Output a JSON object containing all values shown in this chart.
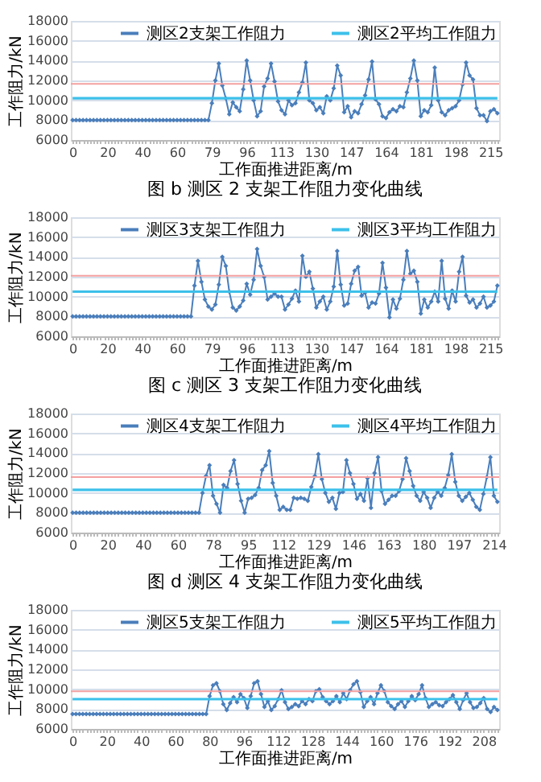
{
  "chart_data": [
    {
      "type": "line",
      "title": "图 b   测区 2 支架工作阻力变化曲线",
      "xlabel": "工作面推进距离/m",
      "ylabel": "工作阻力/kN",
      "categories": [
        "0",
        null,
        null,
        null,
        null,
        null,
        null,
        null,
        null,
        null,
        "20",
        null,
        null,
        null,
        null,
        null,
        null,
        null,
        null,
        null,
        "40",
        null,
        null,
        null,
        null,
        null,
        null,
        null,
        null,
        null,
        "60",
        null,
        null,
        null,
        null,
        null,
        null,
        null,
        null,
        null,
        "79",
        null,
        null,
        null,
        null,
        null,
        null,
        null,
        null,
        null,
        "96",
        null,
        null,
        null,
        null,
        null,
        null,
        null,
        null,
        null,
        "113",
        null,
        null,
        null,
        null,
        null,
        null,
        null,
        null,
        null,
        "130",
        null,
        null,
        null,
        null,
        null,
        null,
        null,
        null,
        null,
        "147",
        null,
        null,
        null,
        null,
        null,
        null,
        null,
        null,
        null,
        "164",
        null,
        null,
        null,
        null,
        null,
        null,
        null,
        null,
        null,
        "181",
        null,
        null,
        null,
        null,
        null,
        null,
        null,
        null,
        null,
        "198",
        null,
        null,
        null,
        null,
        null,
        null,
        null,
        null,
        null,
        "215",
        null,
        null
      ],
      "series": [
        {
          "name": "测区2支架工作阻力",
          "color": "#4a7ebb",
          "marker": "diamond",
          "values": [
            8000,
            8000,
            8000,
            8000,
            8000,
            8000,
            8000,
            8000,
            8000,
            8000,
            8000,
            8000,
            8000,
            8000,
            8000,
            8000,
            8000,
            8000,
            8000,
            8000,
            8000,
            8000,
            8000,
            8000,
            8000,
            8000,
            8000,
            8000,
            8000,
            8000,
            8000,
            8000,
            8000,
            8000,
            8000,
            8000,
            8000,
            8000,
            8000,
            8000,
            9700,
            12000,
            13700,
            11500,
            10200,
            8600,
            9800,
            9300,
            8900,
            11100,
            14000,
            12000,
            10000,
            8400,
            8900,
            11400,
            12200,
            13700,
            11900,
            9900,
            9000,
            8600,
            10000,
            9500,
            9700,
            10800,
            11800,
            13800,
            10000,
            9700,
            9000,
            9300,
            8700,
            10400,
            10000,
            11200,
            13500,
            12500,
            8800,
            9400,
            8300,
            8900,
            8700,
            9600,
            10500,
            12100,
            13900,
            10100,
            9600,
            8400,
            8200,
            8800,
            9100,
            8900,
            9400,
            9300,
            10800,
            12200,
            14000,
            12000,
            8400,
            9000,
            8800,
            9500,
            13300,
            10000,
            8800,
            8500,
            9000,
            9200,
            9400,
            10000,
            11600,
            13800,
            12500,
            12100,
            9200,
            8500,
            8500,
            7900,
            8900,
            9100,
            8700
          ]
        },
        {
          "name": "测区2平均工作阻力",
          "color": "#3cc0ea",
          "marker": "none",
          "values": [
            10200,
            10200,
            10200,
            10200,
            10200,
            10200,
            10200,
            10200,
            10200,
            10200,
            10200,
            10200,
            10200,
            10200,
            10200,
            10200,
            10200,
            10200,
            10200,
            10200,
            10200,
            10200,
            10200,
            10200,
            10200,
            10200,
            10200,
            10200,
            10200,
            10200,
            10200,
            10200,
            10200,
            10200,
            10200,
            10200,
            10200,
            10200,
            10200,
            10200,
            10200,
            10200,
            10200,
            10200,
            10200,
            10200,
            10200,
            10200,
            10200,
            10200,
            10200,
            10200,
            10200,
            10200,
            10200,
            10200,
            10200,
            10200,
            10200,
            10200,
            10200,
            10200,
            10200,
            10200,
            10200,
            10200,
            10200,
            10200,
            10200,
            10200,
            10200,
            10200,
            10200,
            10200,
            10200,
            10200,
            10200,
            10200,
            10200,
            10200,
            10200,
            10200,
            10200,
            10200,
            10200,
            10200,
            10200,
            10200,
            10200,
            10200,
            10200,
            10200,
            10200,
            10200,
            10200,
            10200,
            10200,
            10200,
            10200,
            10200,
            10200,
            10200,
            10200,
            10200,
            10200,
            10200,
            10200,
            10200,
            10200,
            10200,
            10200,
            10200,
            10200,
            10200,
            10200,
            10200,
            10200,
            10200,
            10200,
            10200,
            10200,
            10200,
            10200
          ]
        }
      ],
      "ylim": [
        6000,
        18000
      ],
      "yticks": [
        6000,
        8000,
        10000,
        12000,
        14000,
        16000,
        18000
      ],
      "grid": "y",
      "legend": "top",
      "ref_lines": [
        {
          "axis": "y",
          "value": 11650,
          "color": "#f4a0a0"
        }
      ]
    },
    {
      "type": "line",
      "title": "图 c   测区 3 支架工作阻力变化曲线",
      "xlabel": "工作面推进距离/m",
      "ylabel": "工作阻力/kN",
      "categories": [
        "0",
        null,
        null,
        null,
        null,
        null,
        null,
        null,
        null,
        null,
        "20",
        null,
        null,
        null,
        null,
        null,
        null,
        null,
        null,
        null,
        "40",
        null,
        null,
        null,
        null,
        null,
        null,
        null,
        null,
        null,
        "60",
        null,
        null,
        null,
        null,
        null,
        null,
        null,
        null,
        null,
        "79",
        null,
        null,
        null,
        null,
        null,
        null,
        null,
        null,
        null,
        "96",
        null,
        null,
        null,
        null,
        null,
        null,
        null,
        null,
        null,
        "113",
        null,
        null,
        null,
        null,
        null,
        null,
        null,
        null,
        null,
        "130",
        null,
        null,
        null,
        null,
        null,
        null,
        null,
        null,
        null,
        "147",
        null,
        null,
        null,
        null,
        null,
        null,
        null,
        null,
        null,
        "164",
        null,
        null,
        null,
        null,
        null,
        null,
        null,
        null,
        null,
        "181",
        null,
        null,
        null,
        null,
        null,
        null,
        null,
        null,
        null,
        "198",
        null,
        null,
        null,
        null,
        null,
        null,
        null,
        null,
        null,
        "215",
        null,
        null
      ],
      "series": [
        {
          "name": "测区3支架工作阻力",
          "color": "#4a7ebb",
          "marker": "diamond",
          "values": [
            8000,
            8000,
            8000,
            8000,
            8000,
            8000,
            8000,
            8000,
            8000,
            8000,
            8000,
            8000,
            8000,
            8000,
            8000,
            8000,
            8000,
            8000,
            8000,
            8000,
            8000,
            8000,
            8000,
            8000,
            8000,
            8000,
            8000,
            8000,
            8000,
            8000,
            8000,
            8000,
            8000,
            8000,
            8000,
            11100,
            13600,
            11500,
            9700,
            9000,
            8700,
            9200,
            11200,
            14000,
            13100,
            10500,
            8900,
            8600,
            9000,
            9600,
            11300,
            10200,
            11700,
            14800,
            13100,
            12000,
            9700,
            10000,
            10300,
            10000,
            10000,
            8700,
            9200,
            9800,
            10600,
            9500,
            14100,
            12000,
            12500,
            10800,
            8900,
            9500,
            10000,
            8700,
            9500,
            11000,
            14600,
            11200,
            9100,
            9300,
            11300,
            12600,
            13000,
            10100,
            10400,
            8900,
            9400,
            9300,
            10300,
            13400,
            10900,
            7900,
            9700,
            8800,
            9800,
            11700,
            14600,
            12300,
            12600,
            11500,
            8300,
            9700,
            8900,
            9500,
            10500,
            9500,
            13600,
            9800,
            8800,
            10600,
            9500,
            12500,
            14000,
            10100,
            9400,
            9700,
            8900,
            9300,
            10000,
            8900,
            9100,
            9500,
            11100
          ]
        },
        {
          "name": "测区3平均工作阻力",
          "color": "#3cc0ea",
          "marker": "none",
          "values": [
            10500,
            10500,
            10500,
            10500,
            10500,
            10500,
            10500,
            10500,
            10500,
            10500,
            10500,
            10500,
            10500,
            10500,
            10500,
            10500,
            10500,
            10500,
            10500,
            10500,
            10500,
            10500,
            10500,
            10500,
            10500,
            10500,
            10500,
            10500,
            10500,
            10500,
            10500,
            10500,
            10500,
            10500,
            10500,
            10500,
            10500,
            10500,
            10500,
            10500,
            10500,
            10500,
            10500,
            10500,
            10500,
            10500,
            10500,
            10500,
            10500,
            10500,
            10500,
            10500,
            10500,
            10500,
            10500,
            10500,
            10500,
            10500,
            10500,
            10500,
            10500,
            10500,
            10500,
            10500,
            10500,
            10500,
            10500,
            10500,
            10500,
            10500,
            10500,
            10500,
            10500,
            10500,
            10500,
            10500,
            10500,
            10500,
            10500,
            10500,
            10500,
            10500,
            10500,
            10500,
            10500,
            10500,
            10500,
            10500,
            10500,
            10500,
            10500,
            10500,
            10500,
            10500,
            10500,
            10500,
            10500,
            10500,
            10500,
            10500,
            10500,
            10500,
            10500,
            10500,
            10500,
            10500,
            10500,
            10500,
            10500,
            10500,
            10500,
            10500,
            10500,
            10500,
            10500,
            10500,
            10500,
            10500,
            10500,
            10500,
            10500,
            10500,
            10500
          ]
        }
      ],
      "ylim": [
        6000,
        18000
      ],
      "yticks": [
        6000,
        8000,
        10000,
        12000,
        14000,
        16000,
        18000
      ],
      "grid": "y",
      "legend": "top",
      "ref_lines": [
        {
          "axis": "y",
          "value": 12100,
          "color": "#f4a0a0"
        }
      ]
    },
    {
      "type": "line",
      "title": "图 d   测区 4 支架工作阻力变化曲线",
      "xlabel": "工作面推进距离/m",
      "ylabel": "工作阻力/kN",
      "categories": [
        "0",
        null,
        null,
        null,
        null,
        null,
        null,
        null,
        null,
        null,
        "20",
        null,
        null,
        null,
        null,
        null,
        null,
        null,
        null,
        null,
        "40",
        null,
        null,
        null,
        null,
        null,
        null,
        null,
        null,
        null,
        "60",
        null,
        null,
        null,
        null,
        null,
        null,
        null,
        null,
        null,
        "78",
        null,
        null,
        null,
        null,
        null,
        null,
        null,
        null,
        null,
        "95",
        null,
        null,
        null,
        null,
        null,
        null,
        null,
        null,
        null,
        "112",
        null,
        null,
        null,
        null,
        null,
        null,
        null,
        null,
        null,
        "129",
        null,
        null,
        null,
        null,
        null,
        null,
        null,
        null,
        null,
        "146",
        null,
        null,
        null,
        null,
        null,
        null,
        null,
        null,
        null,
        "163",
        null,
        null,
        null,
        null,
        null,
        null,
        null,
        null,
        null,
        "180",
        null,
        null,
        null,
        null,
        null,
        null,
        null,
        null,
        null,
        "197",
        null,
        null,
        null,
        null,
        null,
        null,
        null,
        null,
        null,
        "214",
        null
      ],
      "series": [
        {
          "name": "测区4支架工作阻力",
          "color": "#4a7ebb",
          "marker": "diamond",
          "values": [
            8000,
            8000,
            8000,
            8000,
            8000,
            8000,
            8000,
            8000,
            8000,
            8000,
            8000,
            8000,
            8000,
            8000,
            8000,
            8000,
            8000,
            8000,
            8000,
            8000,
            8000,
            8000,
            8000,
            8000,
            8000,
            8000,
            8000,
            8000,
            8000,
            8000,
            8000,
            8000,
            8000,
            8000,
            8000,
            8000,
            8000,
            10000,
            11700,
            12800,
            9700,
            8900,
            8000,
            10800,
            10500,
            12200,
            13300,
            10900,
            9200,
            8000,
            9400,
            9500,
            9800,
            10500,
            12300,
            12800,
            14200,
            11000,
            9700,
            8300,
            8600,
            8300,
            8300,
            9500,
            9400,
            9500,
            9400,
            9200,
            10600,
            11700,
            13900,
            11400,
            10000,
            9100,
            9500,
            8400,
            10000,
            10100,
            13300,
            12000,
            10900,
            9400,
            9900,
            9200,
            11500,
            8500,
            12000,
            13600,
            10200,
            8900,
            9300,
            9700,
            9700,
            10200,
            11400,
            13500,
            12200,
            10700,
            9700,
            9200,
            10100,
            9500,
            8500,
            9500,
            10100,
            9700,
            10500,
            11800,
            13900,
            11100,
            9700,
            9200,
            9600,
            10000,
            9300,
            8600,
            8300,
            9900,
            11600,
            13600,
            9700,
            9100
          ]
        },
        {
          "name": "测区4平均工作阻力",
          "color": "#3cc0ea",
          "marker": "none",
          "values": [
            10300,
            10300,
            10300,
            10300,
            10300,
            10300,
            10300,
            10300,
            10300,
            10300,
            10300,
            10300,
            10300,
            10300,
            10300,
            10300,
            10300,
            10300,
            10300,
            10300,
            10300,
            10300,
            10300,
            10300,
            10300,
            10300,
            10300,
            10300,
            10300,
            10300,
            10300,
            10300,
            10300,
            10300,
            10300,
            10300,
            10300,
            10300,
            10300,
            10300,
            10300,
            10300,
            10300,
            10300,
            10300,
            10300,
            10300,
            10300,
            10300,
            10300,
            10300,
            10300,
            10300,
            10300,
            10300,
            10300,
            10300,
            10300,
            10300,
            10300,
            10300,
            10300,
            10300,
            10300,
            10300,
            10300,
            10300,
            10300,
            10300,
            10300,
            10300,
            10300,
            10300,
            10300,
            10300,
            10300,
            10300,
            10300,
            10300,
            10300,
            10300,
            10300,
            10300,
            10300,
            10300,
            10300,
            10300,
            10300,
            10300,
            10300,
            10300,
            10300,
            10300,
            10300,
            10300,
            10300,
            10300,
            10300,
            10300,
            10300,
            10300,
            10300,
            10300,
            10300,
            10300,
            10300,
            10300,
            10300,
            10300,
            10300,
            10300,
            10300,
            10300,
            10300,
            10300,
            10300,
            10300,
            10300,
            10300,
            10300,
            10300,
            10300
          ]
        }
      ],
      "ylim": [
        6000,
        18000
      ],
      "yticks": [
        6000,
        8000,
        10000,
        12000,
        14000,
        16000,
        18000
      ],
      "grid": "y",
      "legend": "top",
      "ref_lines": [
        {
          "axis": "y",
          "value": 11600,
          "color": "#f4a0a0"
        }
      ]
    },
    {
      "type": "line",
      "xlabel": "工作面推进距离/m",
      "ylabel": "工作阻力/kN",
      "categories": [
        "0",
        null,
        null,
        null,
        null,
        null,
        null,
        null,
        null,
        null,
        "20",
        null,
        null,
        null,
        null,
        null,
        null,
        null,
        null,
        null,
        "40",
        null,
        null,
        null,
        null,
        null,
        null,
        null,
        null,
        null,
        "60",
        null,
        null,
        null,
        null,
        null,
        null,
        null,
        null,
        null,
        "80",
        null,
        null,
        null,
        null,
        null,
        null,
        null,
        null,
        null,
        "96",
        null,
        null,
        null,
        null,
        null,
        null,
        null,
        null,
        null,
        "112",
        null,
        null,
        null,
        null,
        null,
        null,
        null,
        null,
        null,
        "128",
        null,
        null,
        null,
        null,
        null,
        null,
        null,
        null,
        null,
        "144",
        null,
        null,
        null,
        null,
        null,
        null,
        null,
        null,
        null,
        "160",
        null,
        null,
        null,
        null,
        null,
        null,
        null,
        null,
        null,
        "176",
        null,
        null,
        null,
        null,
        null,
        null,
        null,
        null,
        null,
        "192",
        null,
        null,
        null,
        null,
        null,
        null,
        null,
        null,
        null,
        "208",
        null,
        null,
        null,
        null
      ],
      "series": [
        {
          "name": "测区5支架工作阻力",
          "color": "#4a7ebb",
          "marker": "diamond",
          "values": [
            7500,
            7500,
            7500,
            7500,
            7500,
            7500,
            7500,
            7500,
            7500,
            7500,
            7500,
            7500,
            7500,
            7500,
            7500,
            7500,
            7500,
            7500,
            7500,
            7500,
            7500,
            7500,
            7500,
            7500,
            7500,
            7500,
            7500,
            7500,
            7500,
            7500,
            7500,
            7500,
            7500,
            7500,
            7500,
            7500,
            7500,
            7500,
            7500,
            7500,
            9300,
            10400,
            10600,
            9800,
            8500,
            7900,
            8600,
            9200,
            8700,
            9500,
            9100,
            8100,
            9300,
            10600,
            10800,
            9500,
            8200,
            8800,
            7900,
            8300,
            9000,
            9900,
            8700,
            8000,
            8200,
            8500,
            8300,
            8800,
            8500,
            9000,
            8800,
            9800,
            10000,
            9200,
            8800,
            8500,
            8800,
            9300,
            8700,
            9600,
            9000,
            9900,
            10500,
            10800,
            9700,
            8200,
            8800,
            9200,
            8500,
            9600,
            10400,
            9800,
            8700,
            8300,
            8000,
            8500,
            8800,
            8200,
            8800,
            9300,
            8900,
            9500,
            10400,
            9100,
            8200,
            8500,
            8700,
            8400,
            8300,
            8700,
            9000,
            9400,
            8700,
            8000,
            8900,
            9600,
            8700,
            8100,
            8200,
            8600,
            9100,
            8000,
            7700,
            8200,
            7900
          ]
        },
        {
          "name": "测区5平均工作阻力",
          "color": "#3cc0ea",
          "marker": "none",
          "values": [
            9000,
            9000,
            9000,
            9000,
            9000,
            9000,
            9000,
            9000,
            9000,
            9000,
            9000,
            9000,
            9000,
            9000,
            9000,
            9000,
            9000,
            9000,
            9000,
            9000,
            9000,
            9000,
            9000,
            9000,
            9000,
            9000,
            9000,
            9000,
            9000,
            9000,
            9000,
            9000,
            9000,
            9000,
            9000,
            9000,
            9000,
            9000,
            9000,
            9000,
            9000,
            9000,
            9000,
            9000,
            9000,
            9000,
            9000,
            9000,
            9000,
            9000,
            9000,
            9000,
            9000,
            9000,
            9000,
            9000,
            9000,
            9000,
            9000,
            9000,
            9000,
            9000,
            9000,
            9000,
            9000,
            9000,
            9000,
            9000,
            9000,
            9000,
            9000,
            9000,
            9000,
            9000,
            9000,
            9000,
            9000,
            9000,
            9000,
            9000,
            9000,
            9000,
            9000,
            9000,
            9000,
            9000,
            9000,
            9000,
            9000,
            9000,
            9000,
            9000,
            9000,
            9000,
            9000,
            9000,
            9000,
            9000,
            9000,
            9000,
            9000,
            9000,
            9000,
            9000,
            9000,
            9000,
            9000,
            9000,
            9000,
            9000,
            9000,
            9000,
            9000,
            9000,
            9000,
            9000,
            9000,
            9000,
            9000,
            9000,
            9000,
            9000,
            9000,
            9000,
            9000
          ]
        }
      ],
      "ylim": [
        6000,
        18000
      ],
      "yticks": [
        6000,
        8000,
        10000,
        12000,
        14000,
        16000,
        18000
      ],
      "grid": "y",
      "legend": "top",
      "ref_lines": [
        {
          "axis": "y",
          "value": 9800,
          "color": "#f4a0a0"
        }
      ]
    }
  ]
}
